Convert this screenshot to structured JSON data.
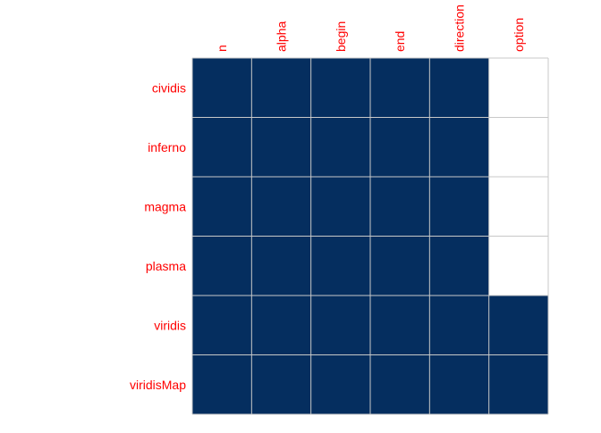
{
  "chart_data": {
    "type": "heatmap",
    "columns": [
      "n",
      "alpha",
      "begin",
      "end",
      "direction",
      "option"
    ],
    "rows": [
      "cividis",
      "inferno",
      "magma",
      "plasma",
      "viridis",
      "viridisMap"
    ],
    "values": [
      [
        1,
        1,
        1,
        1,
        1,
        0
      ],
      [
        1,
        1,
        1,
        1,
        1,
        0
      ],
      [
        1,
        1,
        1,
        1,
        1,
        0
      ],
      [
        1,
        1,
        1,
        1,
        1,
        0
      ],
      [
        1,
        1,
        1,
        1,
        1,
        1
      ],
      [
        1,
        1,
        1,
        1,
        1,
        1
      ]
    ],
    "filled_color": "#052e5f",
    "empty_color": "#ffffff",
    "grid_color": "#c8c8c8",
    "label_color": "#ff0000",
    "grid": true,
    "legend": "none"
  }
}
